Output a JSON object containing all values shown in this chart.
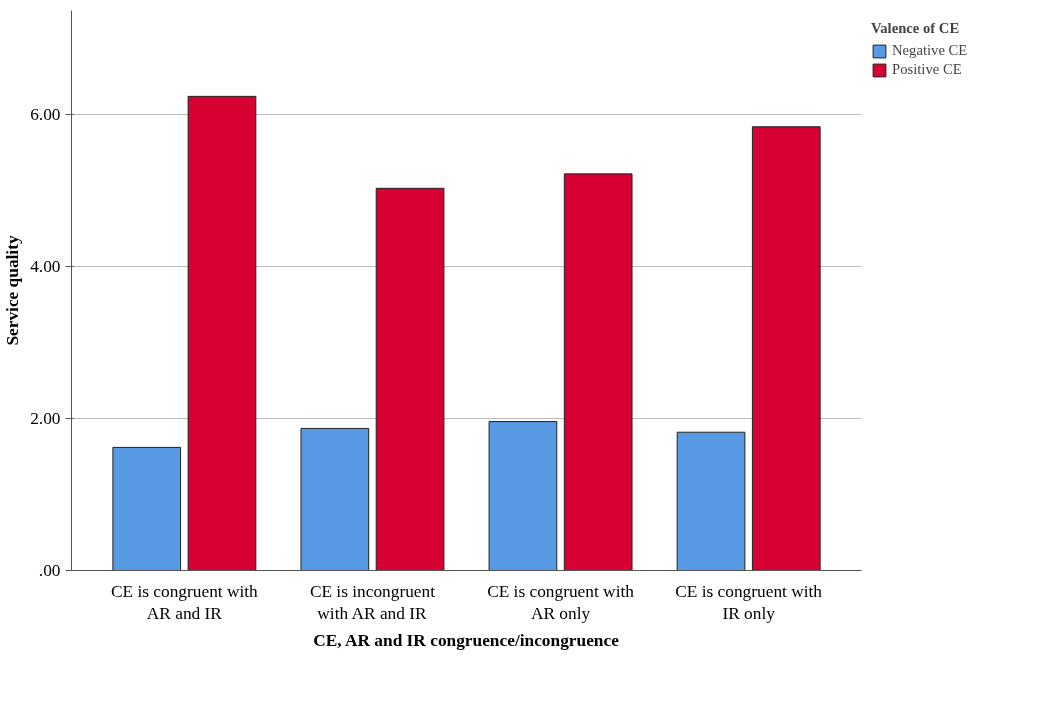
{
  "chart_data": {
    "type": "bar",
    "xlabel": "CE, AR and IR congruence/incongruence",
    "ylabel": "Service quality",
    "legend_title": "Valence of CE",
    "categories": [
      "CE is congruent with AR and IR",
      "CE is incongruent with AR and IR",
      "CE is congruent with AR only",
      "CE is congruent with IR only"
    ],
    "series": [
      {
        "name": "Negative CE",
        "color": "#5799e3",
        "values": [
          1.62,
          1.87,
          1.96,
          1.82
        ]
      },
      {
        "name": "Positive CE",
        "color": "#d60032",
        "values": [
          6.24,
          5.03,
          5.22,
          5.84
        ]
      }
    ],
    "ylim": [
      0,
      7.37
    ],
    "yticks": [
      {
        "value": 0,
        "label": ".00"
      },
      {
        "value": 2,
        "label": "2.00"
      },
      {
        "value": 4,
        "label": "4.00"
      },
      {
        "value": 6,
        "label": "6.00"
      }
    ],
    "grid": "y",
    "legend": "top right"
  }
}
